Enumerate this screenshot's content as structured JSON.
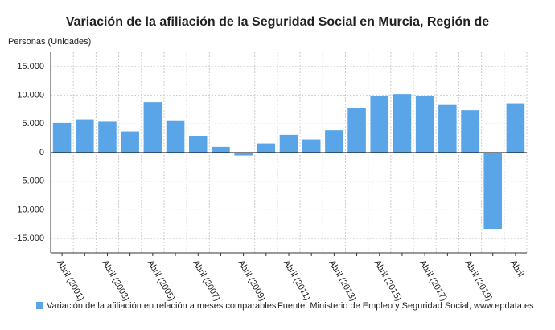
{
  "chart_data": {
    "type": "bar",
    "title": "Variación de la afiliación de la Seguridad Social en Murcia, Región de",
    "y_axis_label": "Personas (Unidades)",
    "categories": [
      "Abril (2001)",
      null,
      "Abril (2003)",
      null,
      "Abril (2005)",
      null,
      "Abril (2007)",
      null,
      "Abril (2009)",
      null,
      "Abril (2011)",
      null,
      "Abril (2013)",
      null,
      "Abril (2015)",
      null,
      "Abril (2017)",
      null,
      "Abril (2019)",
      null,
      "Abril"
    ],
    "series": [
      {
        "name": "Variación de la afiliación en relación a meses comparables",
        "color": "#5aa5e8",
        "values": [
          5200,
          5800,
          5400,
          3700,
          8800,
          5500,
          2800,
          1000,
          -500,
          1600,
          3100,
          2300,
          3900,
          7800,
          9800,
          10200,
          9900,
          8300,
          7400,
          -13300,
          8600
        ]
      }
    ],
    "source": "Fuente: Ministerio de Empleo y Seguridad Social, www.epdata.es",
    "ylim": [
      -17500,
      17500
    ],
    "yticks": [
      {
        "value": 15000,
        "label": "15.000"
      },
      {
        "value": 10000,
        "label": "10.000"
      },
      {
        "value": 5000,
        "label": "5.000"
      },
      0,
      {
        "value": -5000,
        "label": "-5.000"
      },
      {
        "value": -10000,
        "label": "-10.000"
      },
      {
        "value": -15000,
        "label": "-15.000"
      }
    ],
    "grid": true
  }
}
